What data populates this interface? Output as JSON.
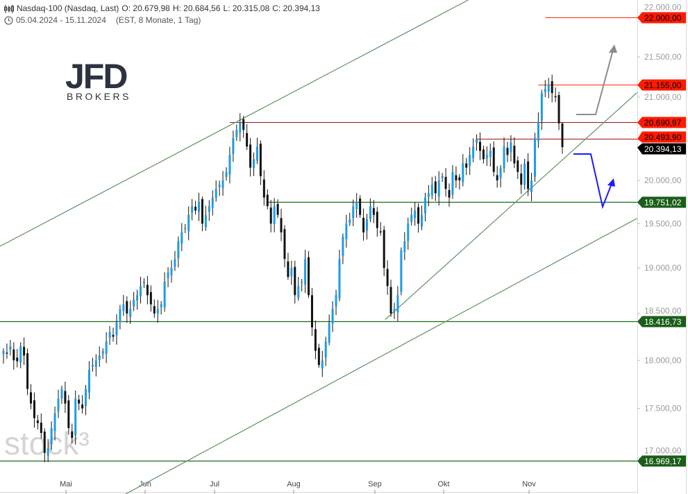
{
  "header": {
    "instrument": "Nasdaq-100 (Nasdaq, Last)",
    "open": "O: 20.679,98",
    "high": "H: 20.684,56",
    "low": "L: 20.315,08",
    "close": "C: 20.394,13",
    "range": "05.04.2024 - 15.11.2024",
    "settings": "(EST, 8 Monate, 1 Tag)"
  },
  "logo": {
    "brand": "JFD",
    "sub": "BROKERS"
  },
  "watermark": "stock3",
  "colors": {
    "up": "#1e9be9",
    "down": "#111111",
    "trend": "#6a9a6a",
    "support_green": "#1a6a1a",
    "resistance_red": "#ff2a00",
    "arrow_up": "#8c8c8c",
    "arrow_scenario": "#1a1aff"
  },
  "chart_data": {
    "type": "candlestick",
    "scale": "log",
    "ylim": [
      16800,
      22300
    ],
    "yticks": [
      {
        "v": 22000,
        "label": "22.000,00"
      },
      {
        "v": 21500,
        "label": "21.500,00"
      },
      {
        "v": 21000,
        "label": "21.000,00"
      },
      {
        "v": 20000,
        "label": "20.000,00"
      },
      {
        "v": 19500,
        "label": "19.500,00"
      },
      {
        "v": 19000,
        "label": "19.000,00"
      },
      {
        "v": 18500,
        "label": "18.500,00"
      },
      {
        "v": 18000,
        "label": "18.000,00"
      },
      {
        "v": 17500,
        "label": "17.500,00"
      },
      {
        "v": 17000,
        "label": "17.000,00"
      }
    ],
    "xticks": [
      "Mai",
      "Jun",
      "Jul",
      "Aug",
      "Sep",
      "Okt",
      "Nov"
    ],
    "closes": [
      18100,
      18080,
      18150,
      18000,
      17990,
      18150,
      18050,
      17700,
      17550,
      17400,
      17350,
      17250,
      17050,
      17100,
      17300,
      17450,
      17600,
      17700,
      17550,
      17300,
      17200,
      17600,
      17550,
      17500,
      17700,
      17900,
      17950,
      18000,
      18050,
      18100,
      18200,
      18300,
      18250,
      18400,
      18550,
      18600,
      18500,
      18550,
      18650,
      18700,
      18800,
      18850,
      18700,
      18600,
      18500,
      18550,
      18600,
      18850,
      18950,
      19000,
      19100,
      19300,
      19400,
      19450,
      19600,
      19700,
      19650,
      19750,
      19500,
      19600,
      19700,
      19800,
      19900,
      19950,
      20000,
      20100,
      20300,
      20500,
      20600,
      20690,
      20600,
      20400,
      20150,
      20250,
      20400,
      20050,
      19800,
      19700,
      19500,
      19700,
      19600,
      19400,
      19100,
      18900,
      19000,
      18700,
      18800,
      18850,
      19100,
      18700,
      18350,
      18100,
      17950,
      18000,
      18200,
      18400,
      18550,
      18700,
      19100,
      19350,
      19500,
      19550,
      19700,
      19750,
      19600,
      19400,
      19550,
      19700,
      19600,
      19450,
      19400,
      19000,
      18800,
      18500,
      18550,
      18700,
      19200,
      19300,
      19500,
      19600,
      19650,
      19500,
      19600,
      19800,
      19850,
      19950,
      19850,
      20000,
      20050,
      19900,
      19800,
      20100,
      20000,
      20000,
      20200,
      20150,
      20300,
      20400,
      20490,
      20350,
      20250,
      20300,
      20350,
      20100,
      20000,
      20150,
      20400,
      20300,
      20450,
      20200,
      20100,
      19950,
      20200,
      19900,
      20000,
      20500,
      20700,
      21050,
      21100,
      21155,
      21050,
      21000,
      20680,
      20394
    ],
    "last": {
      "open": 20679.98,
      "high": 20684.56,
      "low": 20315.08,
      "close": 20394.13
    },
    "levels": [
      {
        "v": 22000,
        "label": "22.000,00",
        "kind": "red",
        "from": 158
      },
      {
        "v": 21155,
        "label": "21.155,00",
        "kind": "red",
        "from": 156
      },
      {
        "v": 20690.97,
        "label": "20.690,97",
        "kind": "red",
        "from": 66
      },
      {
        "v": 20493.9,
        "label": "20.493,90",
        "kind": "red",
        "from": 138
      },
      {
        "v": 20394.13,
        "label": "20.394,13",
        "kind": "last",
        "from": 999
      },
      {
        "v": 19751.02,
        "label": "19.751,02",
        "kind": "green",
        "from": 77
      },
      {
        "v": 18416.73,
        "label": "18.416,73",
        "kind": "green",
        "from": -2
      },
      {
        "v": 16969.17,
        "label": "16.969,17",
        "kind": "green",
        "from": -2
      }
    ],
    "trendlines": [
      {
        "name": "upper-channel",
        "i1": -1,
        "v1": 19243,
        "i2": 135.6,
        "v2": 22230
      },
      {
        "name": "lower-channel",
        "i1": 35.4,
        "v1": 16640,
        "i2": 184.8,
        "v2": 19560
      },
      {
        "name": "support-line",
        "i1": 111.3,
        "v1": 18433,
        "i2": 184.8,
        "v2": 21056
      }
    ]
  }
}
